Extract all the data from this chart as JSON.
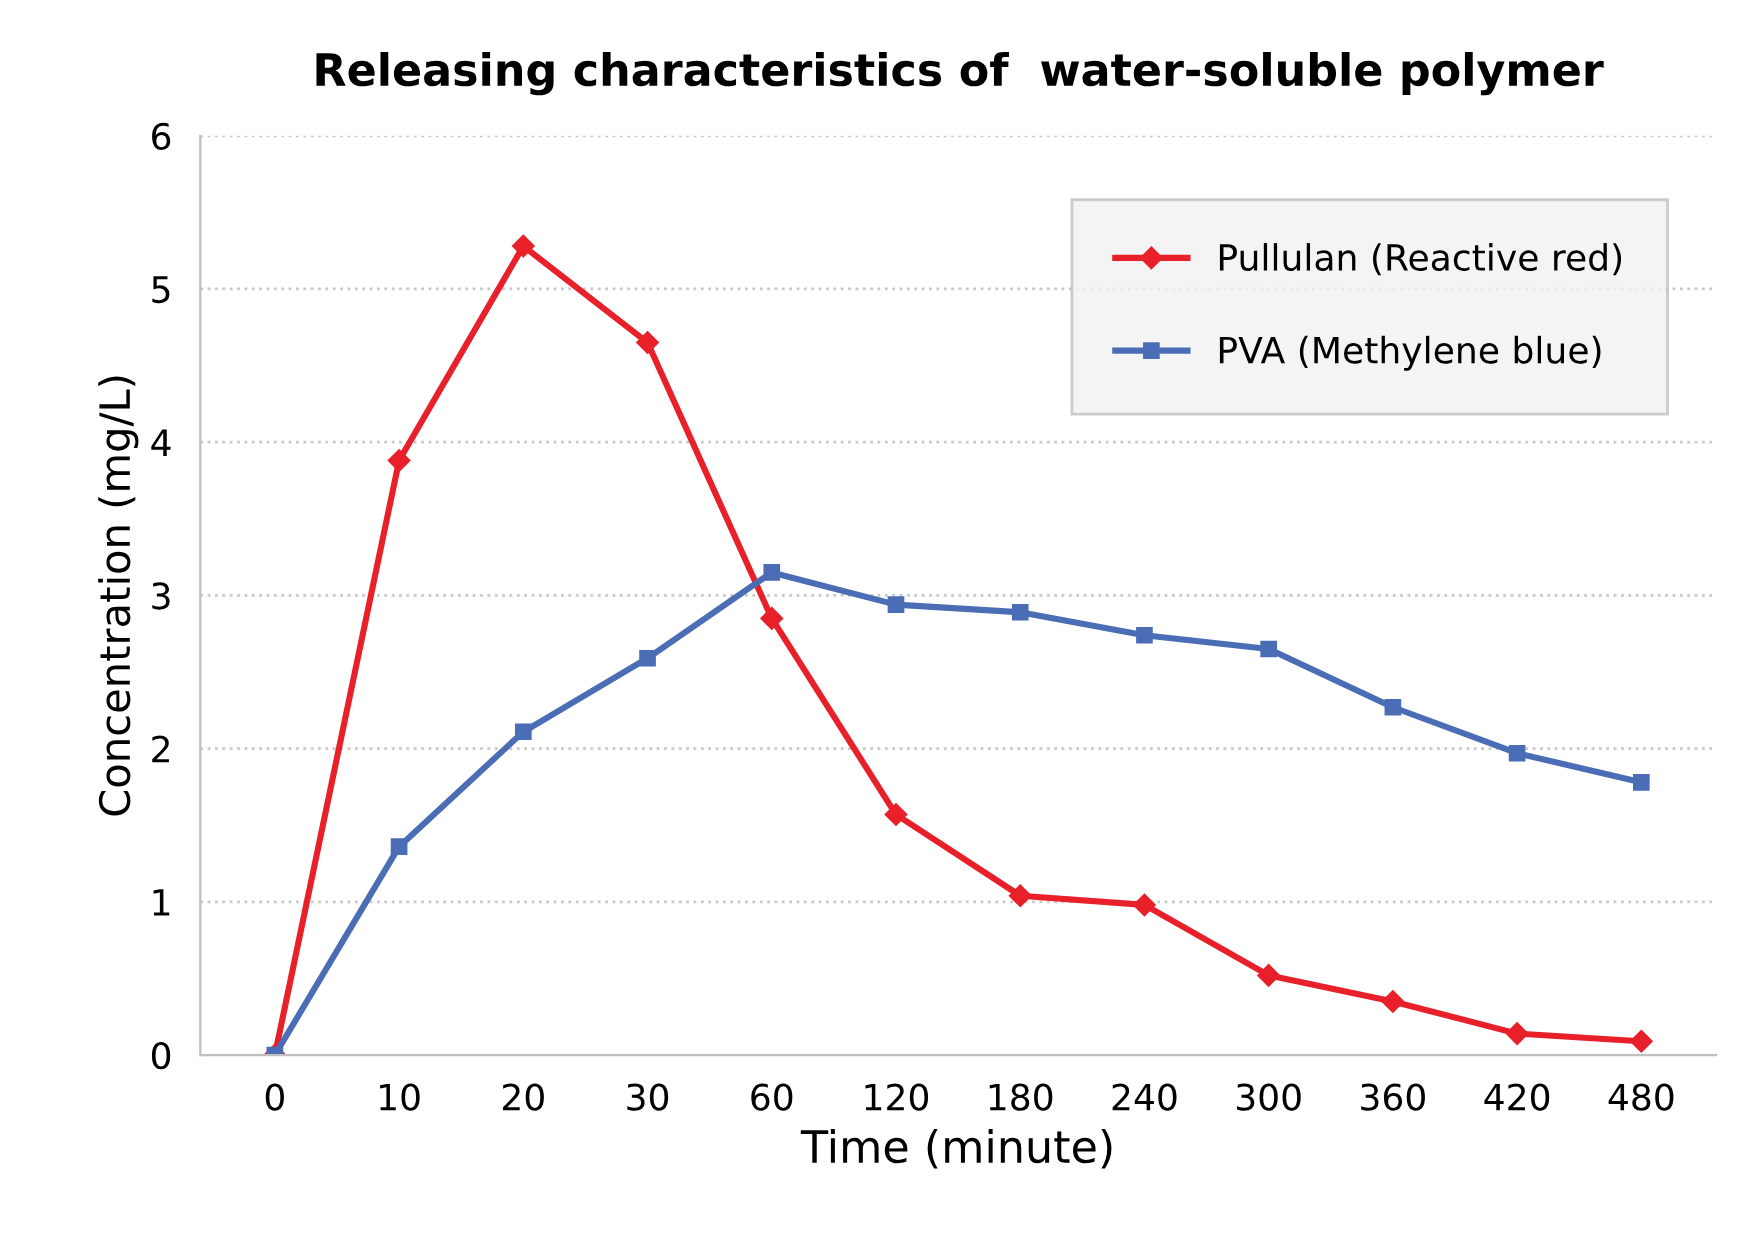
{
  "chart_data": {
    "type": "line",
    "title": "Releasing characteristics of  water-soluble polymer",
    "xlabel": "Time (minute)",
    "ylabel": "Concentration (mg/L)",
    "categories": [
      "0",
      "10",
      "20",
      "30",
      "60",
      "120",
      "180",
      "240",
      "300",
      "360",
      "420",
      "480"
    ],
    "series": [
      {
        "name": "Pullulan (Reactive red)",
        "color": "#e8202a",
        "marker": "diamond",
        "values": [
          0,
          3.88,
          5.28,
          4.65,
          2.85,
          1.57,
          1.04,
          0.98,
          0.52,
          0.35,
          0.14,
          0.09
        ]
      },
      {
        "name": "PVA (Methylene blue)",
        "color": "#4a6db5",
        "marker": "square",
        "values": [
          0,
          1.36,
          2.11,
          2.59,
          3.15,
          2.94,
          2.89,
          2.74,
          2.65,
          2.27,
          1.97,
          1.78
        ]
      }
    ],
    "ylim": [
      0,
      6
    ],
    "yticks": [
      0,
      1,
      2,
      3,
      4,
      5,
      6
    ],
    "grid": "y",
    "legend": "top right",
    "line_style": "solid"
  }
}
